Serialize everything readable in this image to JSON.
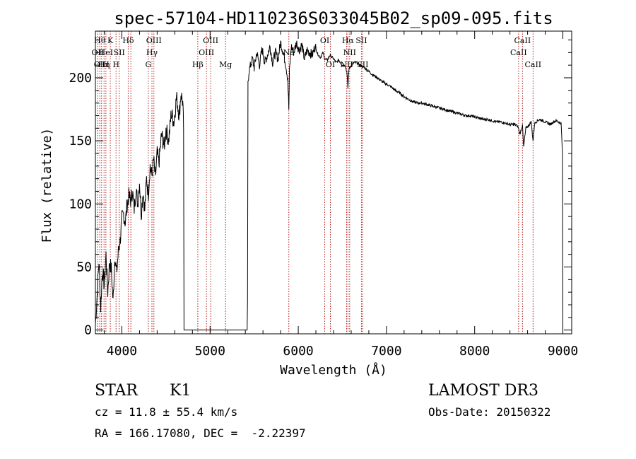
{
  "chart_data": {
    "type": "line",
    "title": "spec-57104-HD110236S033045B02_sp09-095.fits",
    "xlabel": "Wavelength (Å)",
    "ylabel": "Flux (relative)",
    "xlim": [
      3700,
      9100
    ],
    "ylim": [
      -3,
      237
    ],
    "xticks": [
      4000,
      5000,
      6000,
      7000,
      8000,
      9000
    ],
    "yticks": [
      0,
      50,
      100,
      150,
      200
    ],
    "grid": false,
    "series": [
      {
        "name": "flux",
        "x": [
          3700,
          3720,
          3740,
          3760,
          3780,
          3800,
          3820,
          3840,
          3860,
          3880,
          3900,
          3920,
          3940,
          3960,
          3980,
          4000,
          4020,
          4040,
          4060,
          4080,
          4100,
          4120,
          4140,
          4160,
          4180,
          4200,
          4220,
          4240,
          4260,
          4280,
          4300,
          4320,
          4340,
          4360,
          4380,
          4400,
          4420,
          4450,
          4480,
          4500,
          4530,
          4560,
          4590,
          4620,
          4650,
          4670,
          4690,
          4700,
          4705,
          5420,
          5425,
          5430,
          5440,
          5460,
          5480,
          5500,
          5530,
          5560,
          5590,
          5620,
          5650,
          5680,
          5710,
          5740,
          5770,
          5800,
          5830,
          5860,
          5880,
          5893,
          5900,
          5920,
          5950,
          5980,
          6010,
          6040,
          6070,
          6100,
          6130,
          6160,
          6190,
          6220,
          6250,
          6280,
          6300,
          6330,
          6360,
          6400,
          6430,
          6460,
          6500,
          6530,
          6550,
          6563,
          6575,
          6600,
          6630,
          6660,
          6700,
          6750,
          6800,
          6850,
          6900,
          6950,
          7000,
          7050,
          7100,
          7150,
          7200,
          7250,
          7300,
          7350,
          7400,
          7450,
          7500,
          7550,
          7600,
          7650,
          7700,
          7750,
          7800,
          7850,
          7900,
          7950,
          8000,
          8050,
          8100,
          8150,
          8200,
          8250,
          8300,
          8350,
          8400,
          8450,
          8480,
          8498,
          8510,
          8530,
          8542,
          8555,
          8580,
          8610,
          8640,
          8662,
          8680,
          8710,
          8740,
          8770,
          8800,
          8830,
          8860,
          8890,
          8920,
          8950,
          8980,
          8995,
          9000
        ],
        "values": [
          5,
          28,
          55,
          18,
          48,
          35,
          60,
          30,
          54,
          48,
          22,
          60,
          45,
          62,
          70,
          88,
          92,
          85,
          100,
          106,
          103,
          110,
          96,
          112,
          100,
          118,
          92,
          110,
          95,
          120,
          108,
          130,
          122,
          135,
          120,
          140,
          132,
          155,
          145,
          160,
          150,
          172,
          165,
          185,
          170,
          188,
          180,
          160,
          0,
          0,
          20,
          195,
          205,
          210,
          215,
          208,
          220,
          210,
          223,
          212,
          218,
          225,
          212,
          220,
          215,
          228,
          220,
          210,
          200,
          175,
          205,
          225,
          220,
          228,
          222,
          226,
          215,
          222,
          220,
          218,
          225,
          219,
          216,
          220,
          215,
          214,
          218,
          215,
          212,
          214,
          210,
          210,
          205,
          192,
          207,
          210,
          212,
          212,
          210,
          208,
          205,
          202,
          200,
          197,
          195,
          193,
          190,
          188,
          185,
          183,
          181,
          180,
          180,
          179,
          178,
          177,
          176,
          175,
          174,
          173,
          172,
          171,
          170,
          170,
          169,
          168,
          167,
          167,
          166,
          165,
          165,
          164,
          163,
          163,
          162,
          160,
          155,
          160,
          162,
          145,
          160,
          162,
          165,
          150,
          164,
          166,
          167,
          166,
          165,
          164,
          163,
          165,
          166,
          165,
          164,
          140,
          0
        ]
      }
    ],
    "lines": [
      {
        "w": 3727,
        "labels": [
          "OII"
        ],
        "row": 1
      },
      {
        "w": 3750,
        "labels": [
          "Hθ"
        ],
        "row": 0
      },
      {
        "w": 3770,
        "labels": [
          "OIII"
        ],
        "row": 2
      },
      {
        "w": 3798,
        "labels": [
          "Hη"
        ],
        "row": 2
      },
      {
        "w": 3819,
        "labels": [
          "HeI"
        ],
        "row": 1
      },
      {
        "w": 3869,
        "labels": [
          "K"
        ],
        "row": 0
      },
      {
        "w": 3934,
        "labels": [
          "H"
        ],
        "row": 2
      },
      {
        "w": 3970,
        "labels": [
          "SII"
        ],
        "row": 1
      },
      {
        "w": 4072,
        "labels": [
          "Hδ"
        ],
        "row": 0
      },
      {
        "w": 4102,
        "labels": [],
        "row": 0
      },
      {
        "w": 4300,
        "labels": [
          "G"
        ],
        "row": 2
      },
      {
        "w": 4341,
        "labels": [
          "Hγ"
        ],
        "row": 1
      },
      {
        "w": 4363,
        "labels": [
          "OIII"
        ],
        "row": 0
      },
      {
        "w": 4861,
        "labels": [
          "Hβ"
        ],
        "row": 2
      },
      {
        "w": 4959,
        "labels": [
          "OIII"
        ],
        "row": 1
      },
      {
        "w": 5007,
        "labels": [
          "OIII"
        ],
        "row": 0
      },
      {
        "w": 5175,
        "labels": [
          "Mg"
        ],
        "row": 2
      },
      {
        "w": 5893,
        "labels": [
          "Na"
        ],
        "row": 1
      },
      {
        "w": 6300,
        "labels": [
          "OI"
        ],
        "row": 0
      },
      {
        "w": 6364,
        "labels": [
          "OI"
        ],
        "row": 2
      },
      {
        "w": 6548,
        "labels": [
          "NII"
        ],
        "row": 2
      },
      {
        "w": 6563,
        "labels": [
          "Hα"
        ],
        "row": 0
      },
      {
        "w": 6583,
        "labels": [
          "NII"
        ],
        "row": 1
      },
      {
        "w": 6716,
        "labels": [
          "SII"
        ],
        "row": 0
      },
      {
        "w": 6731,
        "labels": [
          "SII"
        ],
        "row": 2
      },
      {
        "w": 8498,
        "labels": [
          "CaII"
        ],
        "row": 1
      },
      {
        "w": 8542,
        "labels": [
          "CaII"
        ],
        "row": 0
      },
      {
        "w": 8662,
        "labels": [
          "CaII"
        ],
        "row": 2
      }
    ]
  },
  "info": {
    "object_type": "STAR",
    "subclass": "K1",
    "survey": "LAMOST DR3",
    "cz": "cz = 11.8 ± 55.4 km/s",
    "obs_date": "Obs-Date: 20150322",
    "coords": "RA = 166.17080, DEC =  -2.22397"
  }
}
